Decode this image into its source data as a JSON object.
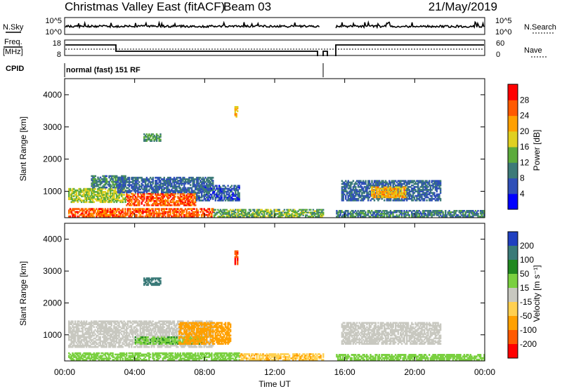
{
  "header": {
    "site": "Christmas Valley East (fitACF)",
    "beam": "Beam 03",
    "date": "21/May/2019"
  },
  "strip": {
    "nsky_label": "N.Sky",
    "nsearch_label": "N.Search",
    "freq_label_1": "Freq.",
    "freq_label_2": "[MHz]",
    "nave_label": "Nave",
    "cpid_label": "CPID",
    "cpid_value": "normal (fast) 151 RF",
    "noise_ticks_left": [
      "10^5",
      "10^0"
    ],
    "noise_ticks_right": [
      "10^5",
      "10^0"
    ],
    "freq_ticks": [
      "18",
      "8"
    ],
    "nave_ticks": [
      "60",
      "0"
    ]
  },
  "chart_data": [
    {
      "type": "heatmap",
      "quantity": "Power",
      "ylabel": "Slant Range [km]",
      "xlabel": "",
      "ylim": [
        180,
        4500
      ],
      "yticks": [
        "1000",
        "2000",
        "3000",
        "4000"
      ],
      "colorbar_label": "Power [dB]",
      "colorbar_ticks": [
        "4",
        "8",
        "12",
        "16",
        "20",
        "24",
        "28"
      ],
      "colors": [
        "#0000ff",
        "#2f4fb8",
        "#3c7a78",
        "#5cab3c",
        "#e0d020",
        "#ffa000",
        "#ff5a00",
        "#ff0000"
      ],
      "regions": [
        {
          "t0": 0.2,
          "t1": 3.5,
          "r0": 650,
          "r1": 1100,
          "v": 16
        },
        {
          "t0": 1.5,
          "t1": 3.5,
          "r0": 1100,
          "r1": 1500,
          "v": 10
        },
        {
          "t0": 3.5,
          "t1": 7.5,
          "r0": 550,
          "r1": 950,
          "v": 26
        },
        {
          "t0": 3.0,
          "t1": 8.5,
          "r0": 950,
          "r1": 1450,
          "v": 8
        },
        {
          "t0": 7.5,
          "t1": 10.0,
          "r0": 700,
          "r1": 1200,
          "v": 7
        },
        {
          "t0": 0.2,
          "t1": 8.5,
          "r0": 200,
          "r1": 480,
          "v": 26
        },
        {
          "t0": 8.5,
          "t1": 14.8,
          "r0": 200,
          "r1": 450,
          "v": 14
        },
        {
          "t0": 15.5,
          "t1": 24.0,
          "r0": 200,
          "r1": 420,
          "v": 10
        },
        {
          "t0": 15.8,
          "t1": 21.5,
          "r0": 700,
          "r1": 1350,
          "v": 8
        },
        {
          "t0": 17.5,
          "t1": 19.5,
          "r0": 800,
          "r1": 1150,
          "v": 21
        },
        {
          "t0": 4.5,
          "t1": 5.5,
          "r0": 2550,
          "r1": 2800,
          "v": 12
        },
        {
          "t0": 9.7,
          "t1": 9.9,
          "r0": 3300,
          "r1": 3650,
          "v": 22
        }
      ]
    },
    {
      "type": "heatmap",
      "quantity": "Velocity",
      "ylabel": "Slant Range [km]",
      "xlabel": "Time UT",
      "ylim": [
        180,
        4500
      ],
      "yticks": [
        "1000",
        "2000",
        "3000",
        "4000"
      ],
      "xticks": [
        "00:00",
        "04:00",
        "08:00",
        "12:00",
        "16:00",
        "20:00",
        "00:00"
      ],
      "colorbar_label": "Velocity [m s⁻¹]",
      "colorbar_ticks": [
        "200",
        "100",
        "50",
        "15",
        "-15",
        "-50",
        "-100",
        "-200"
      ],
      "colors": [
        "#2040c0",
        "#3a7a78",
        "#208820",
        "#7ad040",
        "#c8c8c0",
        "#ffd050",
        "#ffa000",
        "#ff5a00",
        "#ff0000"
      ],
      "regions": [
        {
          "t0": 0.2,
          "t1": 8.5,
          "r0": 600,
          "r1": 1450,
          "v": 0
        },
        {
          "t0": 4.0,
          "t1": 8.0,
          "r0": 700,
          "r1": 950,
          "v": 30
        },
        {
          "t0": 6.5,
          "t1": 9.5,
          "r0": 700,
          "r1": 1400,
          "v": -40
        },
        {
          "t0": 0.2,
          "t1": 10.0,
          "r0": 200,
          "r1": 450,
          "v": 20
        },
        {
          "t0": 10.0,
          "t1": 14.8,
          "r0": 200,
          "r1": 420,
          "v": -30
        },
        {
          "t0": 15.5,
          "t1": 24.0,
          "r0": 200,
          "r1": 400,
          "v": 25
        },
        {
          "t0": 15.8,
          "t1": 21.5,
          "r0": 700,
          "r1": 1400,
          "v": 0
        },
        {
          "t0": 4.5,
          "t1": 5.5,
          "r0": 2550,
          "r1": 2800,
          "v": 120
        },
        {
          "t0": 9.7,
          "t1": 9.9,
          "r0": 3200,
          "r1": 3650,
          "v": -150
        }
      ]
    }
  ]
}
